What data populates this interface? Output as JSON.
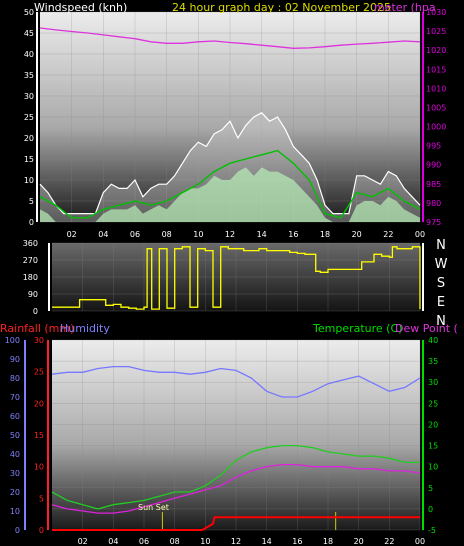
{
  "header": {
    "wind_title": "Windspeed (knh)",
    "title": "24 hour graph day : 02 November 2025",
    "baro_title": "meter (hpa"
  },
  "x_axis_labels": [
    "02",
    "04",
    "06",
    "08",
    "10",
    "12",
    "14",
    "16",
    "18",
    "20",
    "22",
    "00"
  ],
  "panels": {
    "wind": {
      "y_left": [
        0,
        5,
        10,
        15,
        20,
        25,
        30,
        35,
        40,
        45,
        50
      ],
      "y_right": [
        975,
        980,
        985,
        990,
        995,
        1000,
        1005,
        1010,
        1015,
        1020,
        1025,
        1030
      ]
    },
    "direction": {
      "y_left": [
        0,
        90,
        180,
        270,
        360
      ],
      "compass": [
        "N",
        "W",
        "S",
        "E",
        "N"
      ]
    },
    "lower": {
      "rain_title": "Rainfall (mm)",
      "humidity_title": "Humidity",
      "temp_title": "Temperature (C)",
      "dew_title": "Dew Point (",
      "rain_ticks": [
        0,
        5,
        10,
        15,
        20,
        25,
        30
      ],
      "humidity_ticks": [
        0,
        10,
        20,
        30,
        40,
        50,
        60,
        70,
        80,
        90,
        100
      ],
      "temp_ticks": [
        -5,
        0,
        5,
        10,
        15,
        20,
        25,
        30,
        35,
        40
      ],
      "sunset_label": "Sun Set"
    }
  },
  "colors": {
    "wind_gust": "#ffffff",
    "wind_avg": "#00c000",
    "wind_light": "#b8f0b8",
    "pressure": "#dd33dd",
    "direction": "#ffff00",
    "humidity": "#7777ff",
    "temperature": "#22cc22",
    "dewpoint": "#dd22dd",
    "rain": "#ff0000",
    "sunmark": "#cccc00",
    "axis_left_wind": "#ffffff",
    "axis_right_baro": "#dd00dd",
    "rain_axis": "#ff2020",
    "humidity_axis": "#8080ff",
    "temp_axis": "#00dd00"
  },
  "chart_data": [
    {
      "type": "area",
      "x_unit": "hour",
      "xlim": [
        0,
        24
      ],
      "series": [
        {
          "name": "Windspeed (knh)",
          "axis": "left",
          "x": [
            0,
            0.5,
            1,
            1.5,
            2,
            2.5,
            3,
            3.5,
            4,
            4.5,
            5,
            5.5,
            6,
            6.5,
            7,
            7.5,
            8,
            8.5,
            9,
            9.5,
            10,
            10.5,
            11,
            11.5,
            12,
            12.5,
            13,
            13.5,
            14,
            14.5,
            15,
            15.5,
            16,
            16.5,
            17,
            17.5,
            18,
            18.5,
            19,
            19.5,
            20,
            20.5,
            21,
            21.5,
            22,
            22.5,
            23,
            23.5,
            24
          ],
          "values": [
            9,
            7,
            4,
            2,
            2,
            2,
            2,
            2,
            7,
            9,
            8,
            8,
            10,
            6,
            8,
            9,
            9,
            11,
            14,
            17,
            19,
            18,
            21,
            22,
            24,
            20,
            23,
            25,
            26,
            24,
            25,
            22,
            18,
            16,
            14,
            10,
            4,
            2,
            2,
            2,
            11,
            11,
            10,
            9,
            12,
            11,
            8,
            6,
            4
          ]
        },
        {
          "name": "Gust",
          "axis": "left",
          "x": [
            0,
            0.5,
            1,
            1.5,
            2,
            2.5,
            3,
            3.5,
            4,
            4.5,
            5,
            5.5,
            6,
            6.5,
            7,
            7.5,
            8,
            8.5,
            9,
            9.5,
            10,
            10.5,
            11,
            11.5,
            12,
            12.5,
            13,
            13.5,
            14,
            14.5,
            15,
            15.5,
            16,
            16.5,
            17,
            17.5,
            18,
            18.5,
            19,
            19.5,
            20,
            20.5,
            21,
            21.5,
            22,
            22.5,
            23,
            23.5,
            24
          ],
          "values": [
            3,
            2,
            0,
            0,
            0,
            0,
            0,
            0,
            2,
            3,
            3,
            3,
            4,
            2,
            3,
            4,
            3,
            5,
            7,
            8,
            8,
            9,
            11,
            10,
            10,
            12,
            13,
            11,
            13,
            12,
            12,
            11,
            10,
            8,
            6,
            4,
            1,
            0,
            0,
            0,
            4,
            5,
            5,
            4,
            6,
            5,
            3,
            2,
            1
          ]
        },
        {
          "name": "Average",
          "axis": "left",
          "x": [
            0,
            1,
            2,
            3,
            4,
            5,
            6,
            7,
            8,
            9,
            10,
            11,
            12,
            13,
            14,
            15,
            16,
            17,
            18,
            19,
            20,
            21,
            22,
            23,
            24
          ],
          "values": [
            6,
            4,
            1,
            1,
            3,
            4,
            5,
            4,
            5,
            7,
            9,
            12,
            14,
            15,
            16,
            17,
            14,
            10,
            2,
            1,
            7,
            6,
            8,
            5,
            3
          ]
        },
        {
          "name": "meter (hpa",
          "axis": "right",
          "x": [
            0,
            1,
            2,
            3,
            4,
            5,
            6,
            7,
            8,
            9,
            10,
            11,
            12,
            13,
            14,
            15,
            16,
            17,
            18,
            19,
            20,
            21,
            22,
            23,
            24
          ],
          "values": [
            1025.8,
            1025.3,
            1024.9,
            1024.5,
            1024.0,
            1023.5,
            1023.0,
            1022.2,
            1021.8,
            1021.8,
            1022.2,
            1022.4,
            1022.0,
            1021.7,
            1021.3,
            1020.9,
            1020.5,
            1020.6,
            1020.9,
            1021.3,
            1021.6,
            1021.8,
            1022.1,
            1022.4,
            1022.2
          ]
        }
      ],
      "ylim": [
        0,
        50
      ],
      "y2lim": [
        975,
        1030
      ]
    },
    {
      "type": "line",
      "x_unit": "hour",
      "xlim": [
        0,
        24
      ],
      "ylim": [
        0,
        360
      ],
      "series": [
        {
          "name": "Wind direction",
          "x": [
            0,
            0.2,
            1.5,
            1.8,
            3.3,
            3.5,
            4,
            4.5,
            5,
            5.5,
            6,
            6.2,
            6.5,
            7,
            7.5,
            8,
            8.5,
            9,
            9.5,
            10,
            10.5,
            11,
            11.5,
            12,
            12.5,
            13,
            13.5,
            14,
            14.5,
            15,
            15.5,
            16,
            16.5,
            17,
            17.2,
            17.5,
            18,
            19,
            19.5,
            20,
            20.2,
            20.5,
            21,
            21.5,
            22,
            22.2,
            22.5,
            23,
            23.5,
            24
          ],
          "values": [
            20,
            20,
            20,
            60,
            60,
            30,
            35,
            20,
            15,
            10,
            20,
            330,
            10,
            330,
            15,
            330,
            340,
            20,
            330,
            320,
            20,
            340,
            330,
            330,
            320,
            320,
            330,
            320,
            320,
            320,
            310,
            305,
            300,
            300,
            210,
            205,
            220,
            220,
            220,
            220,
            260,
            260,
            300,
            290,
            285,
            340,
            330,
            330,
            340,
            10
          ]
        }
      ]
    },
    {
      "type": "line",
      "x_unit": "hour",
      "xlim": [
        0,
        24
      ],
      "series": [
        {
          "name": "Humidity",
          "axis": "humidity",
          "ylim": [
            0,
            100
          ],
          "x": [
            0,
            1,
            2,
            3,
            4,
            5,
            6,
            7,
            8,
            9,
            10,
            11,
            12,
            13,
            14,
            15,
            16,
            17,
            18,
            19,
            20,
            21,
            22,
            23,
            24
          ],
          "values": [
            82,
            83,
            83,
            85,
            86,
            86,
            84,
            83,
            83,
            82,
            83,
            85,
            84,
            80,
            73,
            70,
            70,
            73,
            77,
            79,
            81,
            77,
            73,
            75,
            80
          ]
        },
        {
          "name": "Temperature (C)",
          "axis": "temp",
          "ylim": [
            -5,
            40
          ],
          "x": [
            0,
            1,
            2,
            3,
            4,
            5,
            6,
            7,
            8,
            9,
            10,
            11,
            12,
            13,
            14,
            15,
            16,
            17,
            18,
            19,
            20,
            21,
            22,
            23,
            24
          ],
          "values": [
            4,
            2,
            1,
            0,
            1,
            1.5,
            2,
            3,
            4,
            4,
            5.5,
            8,
            11.5,
            13.5,
            14.5,
            15,
            15,
            14.5,
            13.5,
            13,
            12.5,
            12.5,
            12,
            11,
            11
          ]
        },
        {
          "name": "Dew Point (",
          "axis": "temp",
          "ylim": [
            -5,
            40
          ],
          "x": [
            0,
            1,
            2,
            3,
            4,
            5,
            6,
            7,
            8,
            9,
            10,
            11,
            12,
            13,
            14,
            15,
            16,
            17,
            18,
            19,
            20,
            21,
            22,
            23,
            24
          ],
          "values": [
            1,
            0,
            -0.5,
            -1,
            -1,
            -0.5,
            0.5,
            1.5,
            2.5,
            3.5,
            4.5,
            5.5,
            7.5,
            9,
            10,
            10.5,
            10.5,
            10,
            10,
            10,
            9.5,
            9.5,
            9,
            9,
            8.5
          ]
        },
        {
          "name": "Rainfall (mm)",
          "axis": "rain",
          "ylim": [
            0,
            30
          ],
          "x": [
            0,
            9.8,
            10.5,
            10.6,
            24
          ],
          "values": [
            0,
            0,
            1,
            2,
            2
          ]
        }
      ],
      "annotations": [
        "Sun Set"
      ]
    }
  ]
}
